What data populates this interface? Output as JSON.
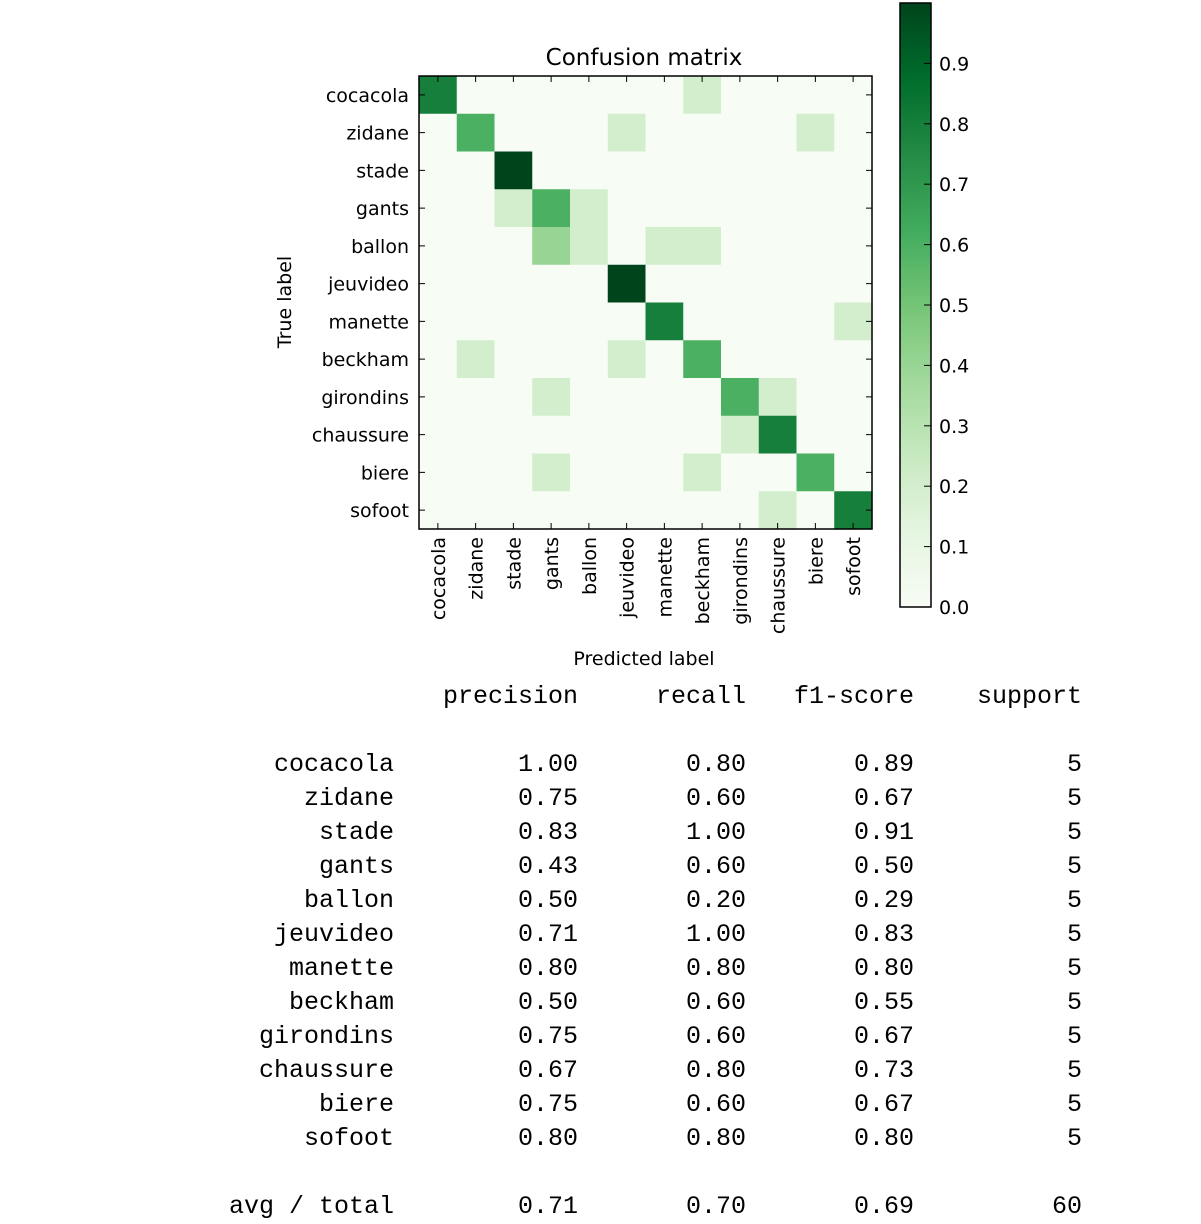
{
  "chart_data": {
    "type": "heatmap",
    "title": "Confusion matrix",
    "xlabel": "Predicted label",
    "ylabel": "True label",
    "labels": [
      "cocacola",
      "zidane",
      "stade",
      "gants",
      "ballon",
      "jeuvideo",
      "manette",
      "beckham",
      "girondins",
      "chaussure",
      "biere",
      "sofoot"
    ],
    "matrix": [
      [
        0.8,
        0,
        0,
        0,
        0,
        0,
        0,
        0.2,
        0,
        0,
        0,
        0
      ],
      [
        0,
        0.6,
        0,
        0,
        0,
        0.2,
        0,
        0,
        0,
        0,
        0.2,
        0
      ],
      [
        0,
        0,
        1.0,
        0,
        0,
        0,
        0,
        0,
        0,
        0,
        0,
        0
      ],
      [
        0,
        0,
        0.2,
        0.6,
        0.2,
        0,
        0,
        0,
        0,
        0,
        0,
        0
      ],
      [
        0,
        0,
        0,
        0.4,
        0.2,
        0,
        0.2,
        0.2,
        0,
        0,
        0,
        0
      ],
      [
        0,
        0,
        0,
        0,
        0,
        1.0,
        0,
        0,
        0,
        0,
        0,
        0
      ],
      [
        0,
        0,
        0,
        0,
        0,
        0,
        0.8,
        0,
        0,
        0,
        0,
        0.2
      ],
      [
        0,
        0.2,
        0,
        0,
        0,
        0.2,
        0,
        0.6,
        0,
        0,
        0,
        0
      ],
      [
        0,
        0,
        0,
        0.2,
        0,
        0,
        0,
        0,
        0.6,
        0.2,
        0,
        0
      ],
      [
        0,
        0,
        0,
        0,
        0,
        0,
        0,
        0,
        0.2,
        0.8,
        0,
        0
      ],
      [
        0,
        0,
        0,
        0.2,
        0,
        0,
        0,
        0.2,
        0,
        0,
        0.6,
        0
      ],
      [
        0,
        0,
        0,
        0,
        0,
        0,
        0,
        0,
        0,
        0.2,
        0,
        0.8
      ]
    ],
    "colorbar": {
      "colormap": "Greens",
      "range": [
        0,
        1.0
      ],
      "ticks": [
        "0.0",
        "0.1",
        "0.2",
        "0.3",
        "0.4",
        "0.5",
        "0.6",
        "0.7",
        "0.8",
        "0.9"
      ]
    }
  },
  "report": {
    "headers": [
      "precision",
      "recall",
      "f1-score",
      "support"
    ],
    "rows": [
      {
        "label": "cocacola",
        "precision": "1.00",
        "recall": "0.80",
        "f1": "0.89",
        "support": "5"
      },
      {
        "label": "zidane",
        "precision": "0.75",
        "recall": "0.60",
        "f1": "0.67",
        "support": "5"
      },
      {
        "label": "stade",
        "precision": "0.83",
        "recall": "1.00",
        "f1": "0.91",
        "support": "5"
      },
      {
        "label": "gants",
        "precision": "0.43",
        "recall": "0.60",
        "f1": "0.50",
        "support": "5"
      },
      {
        "label": "ballon",
        "precision": "0.50",
        "recall": "0.20",
        "f1": "0.29",
        "support": "5"
      },
      {
        "label": "jeuvideo",
        "precision": "0.71",
        "recall": "1.00",
        "f1": "0.83",
        "support": "5"
      },
      {
        "label": "manette",
        "precision": "0.80",
        "recall": "0.80",
        "f1": "0.80",
        "support": "5"
      },
      {
        "label": "beckham",
        "precision": "0.50",
        "recall": "0.60",
        "f1": "0.55",
        "support": "5"
      },
      {
        "label": "girondins",
        "precision": "0.75",
        "recall": "0.60",
        "f1": "0.67",
        "support": "5"
      },
      {
        "label": "chaussure",
        "precision": "0.67",
        "recall": "0.80",
        "f1": "0.73",
        "support": "5"
      },
      {
        "label": "biere",
        "precision": "0.75",
        "recall": "0.60",
        "f1": "0.67",
        "support": "5"
      },
      {
        "label": "sofoot",
        "precision": "0.80",
        "recall": "0.80",
        "f1": "0.80",
        "support": "5"
      }
    ],
    "total": {
      "label": "avg / total",
      "precision": "0.71",
      "recall": "0.70",
      "f1": "0.69",
      "support": "60"
    }
  }
}
